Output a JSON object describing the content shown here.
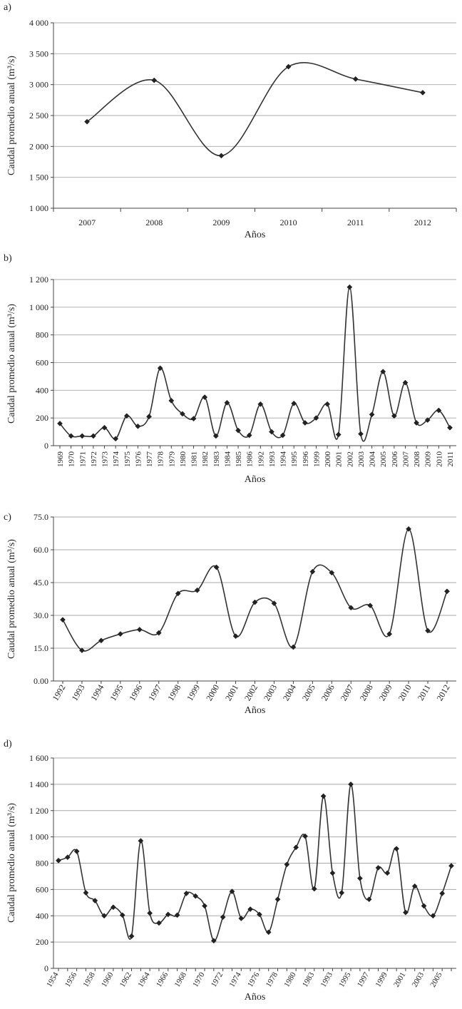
{
  "chart_data": [
    {
      "type": "line",
      "panel": "a)",
      "title": "",
      "xlabel": "Años",
      "ylabel": "Caudal promedio anual (m³/s)",
      "ylim": [
        1000,
        4000
      ],
      "yticks": [
        "1 000",
        "1 500",
        "2 000",
        "2 500",
        "3 000",
        "3 500",
        "4 000"
      ],
      "grid": true,
      "categories": [
        "2007",
        "2008",
        "2009",
        "2010",
        "2011",
        "2012"
      ],
      "values": [
        2400,
        3070,
        1850,
        3290,
        3090,
        2870
      ]
    },
    {
      "type": "line",
      "panel": "b)",
      "title": "",
      "xlabel": "Años",
      "ylabel": "Caudal promedio anual (m³/s)",
      "ylim": [
        0,
        1200
      ],
      "yticks": [
        "0",
        "200",
        "400",
        "600",
        "800",
        "1 000",
        "1 200"
      ],
      "grid": true,
      "categories": [
        "1969",
        "1970",
        "1971",
        "1972",
        "1973",
        "1974",
        "1975",
        "1976",
        "1977",
        "1978",
        "1979",
        "1980",
        "1981",
        "1982",
        "1983",
        "1984",
        "1985",
        "1986",
        "1992",
        "1993",
        "1994",
        "1995",
        "1996",
        "1999",
        "2000",
        "2001",
        "2002",
        "2003",
        "2004",
        "2005",
        "2006",
        "2007",
        "2008",
        "2009",
        "2010",
        "2011"
      ],
      "values": [
        160,
        70,
        70,
        70,
        130,
        50,
        215,
        140,
        210,
        560,
        325,
        230,
        195,
        350,
        70,
        310,
        110,
        75,
        300,
        100,
        75,
        305,
        165,
        200,
        300,
        80,
        1145,
        85,
        225,
        535,
        215,
        455,
        165,
        185,
        255,
        130
      ]
    },
    {
      "type": "line",
      "panel": "c)",
      "title": "",
      "xlabel": "Años",
      "ylabel": "Caudal promedio anual (m³/s)",
      "ylim": [
        0,
        75
      ],
      "yticks": [
        "0.00",
        "15.0",
        "30.0",
        "45.0",
        "60.0",
        "75.0"
      ],
      "grid": true,
      "categories": [
        "1992",
        "1993",
        "1994",
        "1995",
        "1996",
        "1997",
        "1998",
        "1999",
        "2000",
        "2001",
        "2002",
        "2003",
        "2004",
        "2005",
        "2006",
        "2007",
        "2008",
        "2009",
        "2010",
        "2011",
        "2012"
      ],
      "values": [
        28.0,
        14.0,
        18.5,
        21.5,
        23.5,
        22.0,
        40.0,
        41.5,
        52.0,
        20.5,
        36.0,
        35.5,
        15.5,
        50.0,
        49.5,
        33.5,
        34.5,
        21.5,
        69.5,
        23.0,
        41.0
      ]
    },
    {
      "type": "line",
      "panel": "d)",
      "title": "",
      "xlabel": "Años",
      "ylabel": "Caudal promedio anual (m³/s)",
      "ylim": [
        0,
        1600
      ],
      "yticks": [
        "0",
        "200",
        "400",
        "600",
        "800",
        "1 000",
        "1 200",
        "1 400",
        "1 600"
      ],
      "grid": true,
      "categories": [
        "1954",
        "1955",
        "1956",
        "1957",
        "1958",
        "1959",
        "1960",
        "1961",
        "1962",
        "1963",
        "1964",
        "1965",
        "1966",
        "1967",
        "1968",
        "1969",
        "1970",
        "1971",
        "1972",
        "1973",
        "1974",
        "1975",
        "1976",
        "1977",
        "1978",
        "1979",
        "1980",
        "1981",
        "1983",
        "1984",
        "1993",
        "1994",
        "1995",
        "1996",
        "1997",
        "1998",
        "1999",
        "2000",
        "2001",
        "2002",
        "2003",
        "2004",
        "2005",
        "2006"
      ],
      "tick_labels": [
        "1954",
        "1956",
        "1958",
        "1960",
        "1962",
        "1964",
        "1966",
        "1968",
        "1970",
        "1972",
        "1974",
        "1976",
        "1978",
        "1980",
        "1983",
        "1993",
        "1995",
        "1997",
        "1999",
        "2001",
        "2003",
        "2005"
      ],
      "values": [
        820,
        845,
        890,
        575,
        515,
        400,
        465,
        405,
        245,
        970,
        420,
        345,
        410,
        405,
        570,
        550,
        475,
        210,
        390,
        585,
        380,
        450,
        410,
        275,
        525,
        790,
        920,
        1005,
        605,
        1310,
        725,
        575,
        1400,
        685,
        525,
        765,
        725,
        910,
        425,
        625,
        475,
        400,
        570,
        780
      ]
    }
  ]
}
